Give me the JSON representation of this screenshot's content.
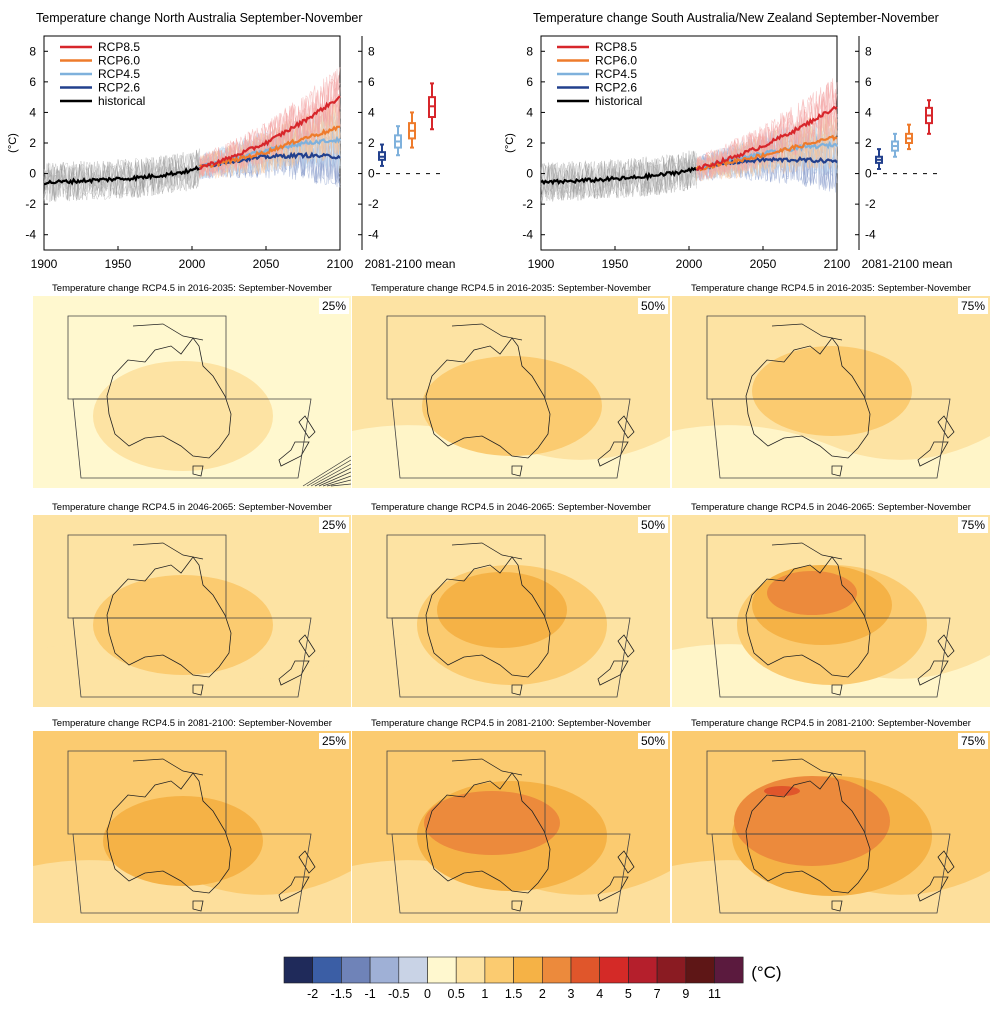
{
  "timeseries": [
    {
      "id": "north",
      "title": "Temperature change North Australia September-November",
      "ylabel": "(°C)",
      "xlabel_right": "2081-2100 mean",
      "xticks": [
        "1900",
        "1950",
        "2000",
        "2050",
        "2100"
      ],
      "yticks": [
        "-4",
        "-2",
        "0",
        "2",
        "4",
        "6",
        "8"
      ],
      "legend": [
        "RCP8.5",
        "RCP6.0",
        "RCP4.5",
        "RCP2.6",
        "historical"
      ]
    },
    {
      "id": "south",
      "title": "Temperature change South Australia/New Zealand September-November",
      "ylabel": "(°C)",
      "xlabel_right": "2081-2100 mean",
      "xticks": [
        "1900",
        "1950",
        "2000",
        "2050",
        "2100"
      ],
      "yticks": [
        "-4",
        "-2",
        "0",
        "2",
        "4",
        "6",
        "8"
      ],
      "legend": [
        "RCP8.5",
        "RCP6.0",
        "RCP4.5",
        "RCP2.6",
        "historical"
      ]
    }
  ],
  "maps": [
    {
      "title": "Temperature change RCP4.5 in 2016-2035: September-November",
      "pct": "25%"
    },
    {
      "title": "Temperature change RCP4.5 in 2016-2035: September-November",
      "pct": "50%"
    },
    {
      "title": "Temperature change RCP4.5 in 2016-2035: September-November",
      "pct": "75%"
    },
    {
      "title": "Temperature change RCP4.5 in 2046-2065: September-November",
      "pct": "25%"
    },
    {
      "title": "Temperature change RCP4.5 in 2046-2065: September-November",
      "pct": "50%"
    },
    {
      "title": "Temperature change RCP4.5 in 2046-2065: September-November",
      "pct": "75%"
    },
    {
      "title": "Temperature change RCP4.5 in 2081-2100: September-November",
      "pct": "25%"
    },
    {
      "title": "Temperature change RCP4.5 in 2081-2100: September-November",
      "pct": "50%"
    },
    {
      "title": "Temperature change RCP4.5 in 2081-2100: September-November",
      "pct": "75%"
    }
  ],
  "colorbar": {
    "unit": "(°C)",
    "labels": [
      "-2",
      "-1.5",
      "-1",
      "-0.5",
      "0",
      "0.5",
      "1",
      "1.5",
      "2",
      "3",
      "4",
      "5",
      "7",
      "9",
      "11"
    ],
    "colors": [
      "#1f2a5a",
      "#3b5ea5",
      "#6f83b8",
      "#9fb0d6",
      "#c9d3e6",
      "#fff8cf",
      "#fde3a3",
      "#fbcb70",
      "#f5b246",
      "#ec8a3c",
      "#e0562b",
      "#d42a27",
      "#b51f2c",
      "#8a1b22",
      "#5e1616",
      "#5b1a3e"
    ]
  },
  "chart_data": [
    {
      "type": "line",
      "title": "Temperature change North Australia September-November",
      "xlabel": "",
      "ylabel": "(°C)",
      "xlim": [
        1900,
        2100
      ],
      "ylim": [
        -5,
        9
      ],
      "series": [
        {
          "name": "historical",
          "x": [
            1900,
            1920,
            1940,
            1960,
            1980,
            2000,
            2005
          ],
          "values": [
            -0.6,
            -0.5,
            -0.4,
            -0.3,
            -0.1,
            0.2,
            0.4
          ]
        },
        {
          "name": "RCP2.6",
          "x": [
            2005,
            2025,
            2050,
            2075,
            2100
          ],
          "values": [
            0.4,
            0.8,
            1.1,
            1.2,
            1.1
          ]
        },
        {
          "name": "RCP4.5",
          "x": [
            2005,
            2025,
            2050,
            2075,
            2100
          ],
          "values": [
            0.4,
            0.9,
            1.5,
            2.0,
            2.2
          ]
        },
        {
          "name": "RCP6.0",
          "x": [
            2005,
            2025,
            2050,
            2075,
            2100
          ],
          "values": [
            0.4,
            0.8,
            1.4,
            2.3,
            3.0
          ]
        },
        {
          "name": "RCP8.5",
          "x": [
            2005,
            2025,
            2050,
            2075,
            2100
          ],
          "values": [
            0.4,
            1.0,
            2.0,
            3.4,
            5.0
          ]
        }
      ],
      "boxes_2081_2100": [
        {
          "name": "RCP2.6",
          "min": 0.5,
          "q1": 0.9,
          "median": 1.1,
          "q3": 1.4,
          "max": 1.9
        },
        {
          "name": "RCP4.5",
          "min": 1.2,
          "q1": 1.7,
          "median": 2.1,
          "q3": 2.5,
          "max": 3.1
        },
        {
          "name": "RCP6.0",
          "min": 1.7,
          "q1": 2.3,
          "median": 2.8,
          "q3": 3.3,
          "max": 4.0
        },
        {
          "name": "RCP8.5",
          "min": 2.9,
          "q1": 3.7,
          "median": 4.4,
          "q3": 5.0,
          "max": 5.9
        }
      ]
    },
    {
      "type": "line",
      "title": "Temperature change South Australia/New Zealand September-November",
      "xlabel": "",
      "ylabel": "(°C)",
      "xlim": [
        1900,
        2100
      ],
      "ylim": [
        -5,
        9
      ],
      "series": [
        {
          "name": "historical",
          "x": [
            1900,
            1920,
            1940,
            1960,
            1980,
            2000,
            2005
          ],
          "values": [
            -0.6,
            -0.5,
            -0.4,
            -0.3,
            -0.1,
            0.2,
            0.3
          ]
        },
        {
          "name": "RCP2.6",
          "x": [
            2005,
            2025,
            2050,
            2075,
            2100
          ],
          "values": [
            0.3,
            0.7,
            0.9,
            0.9,
            0.8
          ]
        },
        {
          "name": "RCP4.5",
          "x": [
            2005,
            2025,
            2050,
            2075,
            2100
          ],
          "values": [
            0.3,
            0.8,
            1.3,
            1.7,
            1.9
          ]
        },
        {
          "name": "RCP6.0",
          "x": [
            2005,
            2025,
            2050,
            2075,
            2100
          ],
          "values": [
            0.3,
            0.7,
            1.2,
            1.8,
            2.4
          ]
        },
        {
          "name": "RCP8.5",
          "x": [
            2005,
            2025,
            2050,
            2075,
            2100
          ],
          "values": [
            0.3,
            0.9,
            1.8,
            3.0,
            4.4
          ]
        }
      ],
      "boxes_2081_2100": [
        {
          "name": "RCP2.6",
          "min": 0.3,
          "q1": 0.7,
          "median": 0.9,
          "q3": 1.1,
          "max": 1.6
        },
        {
          "name": "RCP4.5",
          "min": 1.1,
          "q1": 1.5,
          "median": 1.8,
          "q3": 2.1,
          "max": 2.6
        },
        {
          "name": "RCP6.0",
          "min": 1.6,
          "q1": 2.0,
          "median": 2.3,
          "q3": 2.6,
          "max": 3.2
        },
        {
          "name": "RCP8.5",
          "min": 2.6,
          "q1": 3.3,
          "median": 3.8,
          "q3": 4.3,
          "max": 4.8
        }
      ]
    }
  ],
  "series_colors": {
    "RCP8.5": "#d7262b",
    "RCP6.0": "#ee7b2c",
    "RCP4.5": "#7fb1dc",
    "RCP2.6": "#22408d",
    "historical": "#000000"
  }
}
